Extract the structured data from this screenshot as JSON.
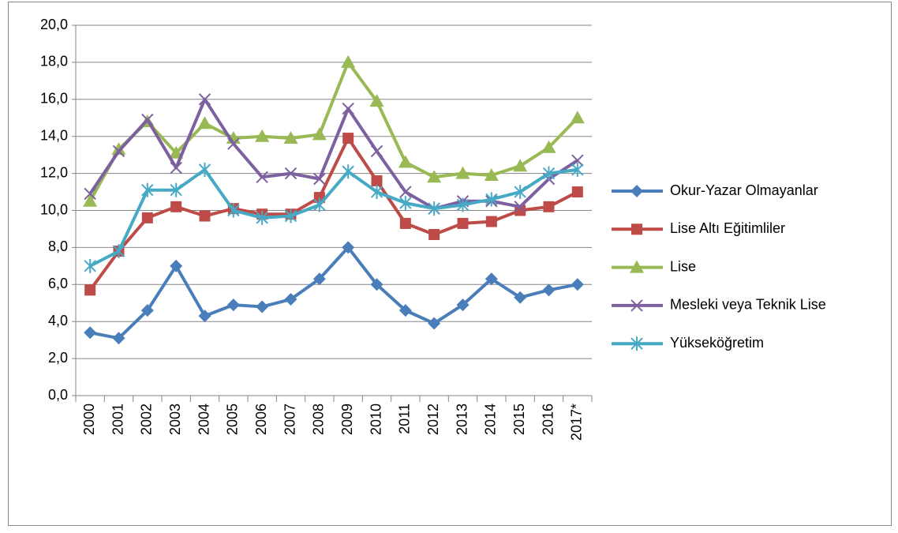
{
  "chart_data": {
    "type": "line",
    "categories": [
      "2000",
      "2001",
      "2002",
      "2003",
      "2004",
      "2005",
      "2006",
      "2007",
      "2008",
      "2009",
      "2010",
      "2011",
      "2012",
      "2013",
      "2014",
      "2015",
      "2016",
      "2017*"
    ],
    "series": [
      {
        "name": "Okur-Yazar Olmayanlar",
        "color": "#4a7ebb",
        "marker": "diamond",
        "values": [
          3.4,
          3.1,
          4.6,
          7.0,
          4.3,
          4.9,
          4.8,
          5.2,
          6.3,
          8.0,
          6.0,
          4.6,
          3.9,
          4.9,
          6.3,
          5.3,
          5.7,
          6.0
        ]
      },
      {
        "name": "Lise Altı Eğitimliler",
        "color": "#be4b48",
        "marker": "square",
        "values": [
          5.7,
          7.8,
          9.6,
          10.2,
          9.7,
          10.1,
          9.8,
          9.8,
          10.7,
          13.9,
          11.6,
          9.3,
          8.7,
          9.3,
          9.4,
          10.0,
          10.2,
          11.0
        ]
      },
      {
        "name": "Lise",
        "color": "#98b954",
        "marker": "triangle",
        "values": [
          10.5,
          13.3,
          14.8,
          13.1,
          14.7,
          13.9,
          14.0,
          13.9,
          14.1,
          18.0,
          15.9,
          12.6,
          11.8,
          12.0,
          11.9,
          12.4,
          13.4,
          15.0
        ]
      },
      {
        "name": "Mesleki veya Teknik Lise",
        "color": "#7d60a0",
        "marker": "x",
        "values": [
          10.9,
          13.2,
          14.9,
          12.3,
          16.0,
          13.6,
          11.8,
          12.0,
          11.7,
          15.5,
          13.2,
          11.0,
          10.1,
          10.5,
          10.5,
          10.2,
          11.7,
          12.7
        ]
      },
      {
        "name": "Yükseköğretim",
        "color": "#46aac5",
        "marker": "asterisk",
        "values": [
          7.0,
          7.8,
          11.1,
          11.1,
          12.2,
          10.0,
          9.6,
          9.7,
          10.3,
          12.1,
          11.0,
          10.4,
          10.1,
          10.3,
          10.6,
          11.0,
          12.0,
          12.2
        ]
      }
    ],
    "ylim": [
      0,
      20
    ],
    "yticks": [
      {
        "value": 0,
        "label": "0,0"
      },
      {
        "value": 2,
        "label": "2,0"
      },
      {
        "value": 4,
        "label": "4,0"
      },
      {
        "value": 6,
        "label": "6,0"
      },
      {
        "value": 8,
        "label": "8,0"
      },
      {
        "value": 10,
        "label": "10,0"
      },
      {
        "value": 12,
        "label": "12,0"
      },
      {
        "value": 14,
        "label": "14,0"
      },
      {
        "value": 16,
        "label": "16,0"
      },
      {
        "value": 18,
        "label": "18,0"
      },
      {
        "value": 20,
        "label": "20,0"
      }
    ],
    "grid": true,
    "legend": "right"
  }
}
